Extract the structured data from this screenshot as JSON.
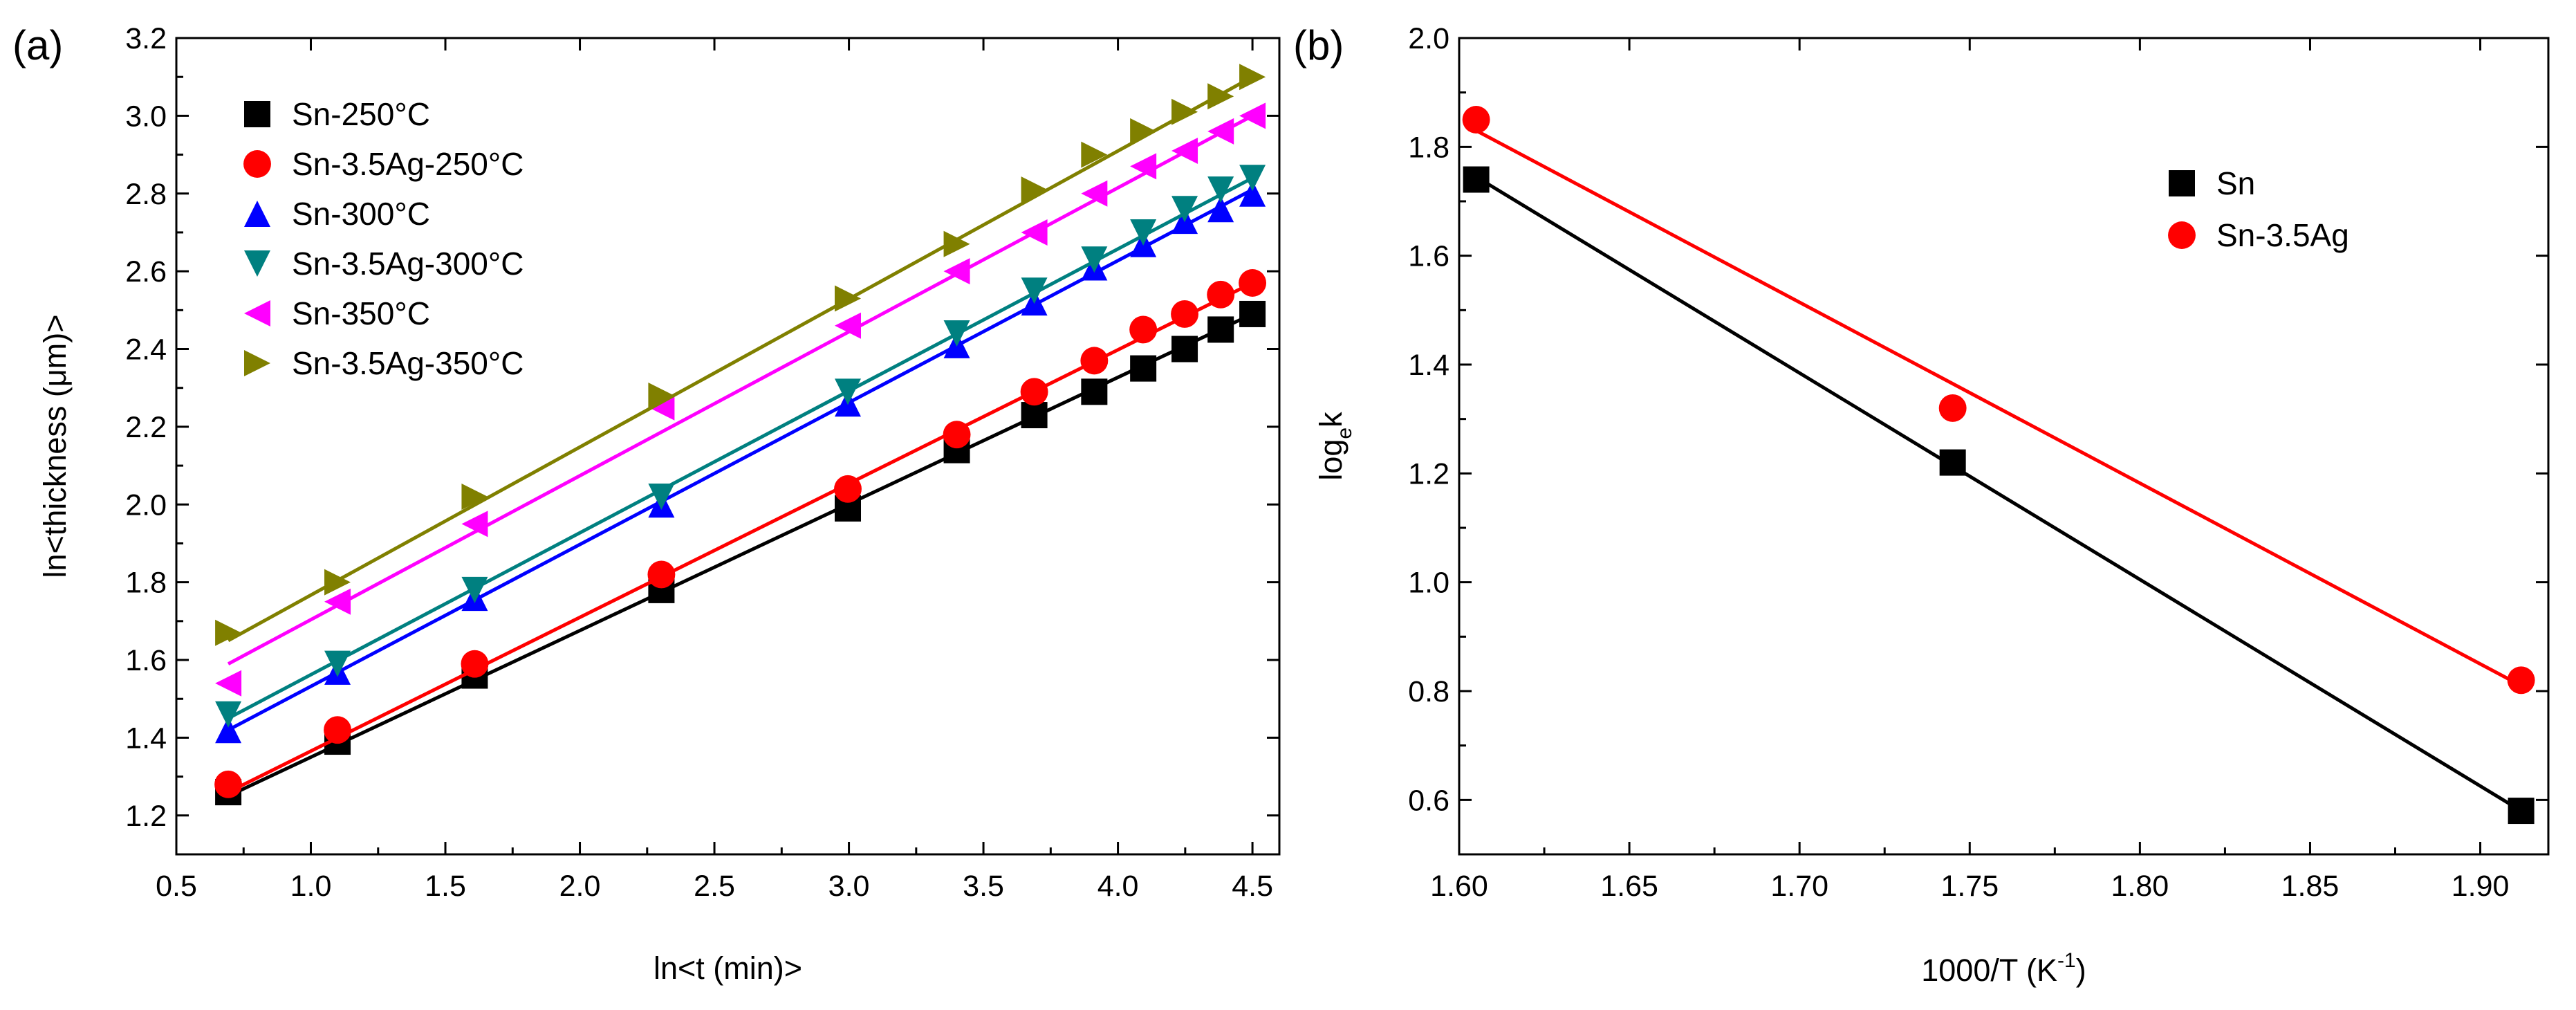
{
  "chart_data": [
    {
      "panel": "(a)",
      "type": "scatter",
      "title": "",
      "xlabel": "ln<t (min)>",
      "ylabel": "ln<thickness (μm)>",
      "xlim": [
        0.5,
        4.6
      ],
      "ylim": [
        1.1,
        3.2
      ],
      "xticks": [
        "0.5",
        "1.0",
        "1.5",
        "2.0",
        "2.5",
        "3.0",
        "3.5",
        "4.0",
        "4.5"
      ],
      "yticks": [
        "1.2",
        "1.4",
        "1.6",
        "1.8",
        "2.0",
        "2.2",
        "2.4",
        "2.6",
        "2.8",
        "3.0",
        "3.2"
      ],
      "x": [
        0.693,
        1.099,
        1.609,
        2.303,
        2.996,
        3.401,
        3.689,
        3.912,
        4.094,
        4.248,
        4.382,
        4.5
      ],
      "legend_position": "top-left",
      "series": [
        {
          "name": "Sn-250°C",
          "marker": "square",
          "color": "#000000",
          "values": [
            1.26,
            1.39,
            1.56,
            1.78,
            1.99,
            2.14,
            2.23,
            2.29,
            2.35,
            2.4,
            2.45,
            2.49
          ],
          "fit": [
            1.25,
            2.49
          ]
        },
        {
          "name": "Sn-3.5Ag-250°C",
          "marker": "circle",
          "color": "#ff0000",
          "values": [
            1.28,
            1.42,
            1.59,
            1.82,
            2.04,
            2.18,
            2.29,
            2.37,
            2.45,
            2.49,
            2.54,
            2.57
          ],
          "fit": [
            1.26,
            2.57
          ]
        },
        {
          "name": "Sn-300°C",
          "marker": "triangle-up",
          "color": "#0000ff",
          "values": [
            1.42,
            1.57,
            1.76,
            2.0,
            2.26,
            2.41,
            2.52,
            2.61,
            2.67,
            2.73,
            2.76,
            2.8
          ],
          "fit": [
            1.42,
            2.81
          ]
        },
        {
          "name": "Sn-3.5Ag-300°C",
          "marker": "triangle-down",
          "color": "#008080",
          "values": [
            1.46,
            1.59,
            1.78,
            2.02,
            2.29,
            2.44,
            2.55,
            2.63,
            2.7,
            2.76,
            2.81,
            2.84
          ],
          "fit": [
            1.45,
            2.84
          ]
        },
        {
          "name": "Sn-350°C",
          "marker": "triangle-left",
          "color": "#ff00ff",
          "values": [
            1.54,
            1.75,
            1.95,
            2.25,
            2.46,
            2.6,
            2.7,
            2.8,
            2.87,
            2.91,
            2.96,
            3.0
          ],
          "fit": [
            1.59,
            3.0
          ]
        },
        {
          "name": "Sn-3.5Ag-350°C",
          "marker": "triangle-right",
          "color": "#808000",
          "values": [
            1.67,
            1.8,
            2.02,
            2.28,
            2.53,
            2.67,
            2.81,
            2.9,
            2.96,
            3.01,
            3.05,
            3.1
          ],
          "fit": [
            1.65,
            3.1
          ]
        }
      ]
    },
    {
      "panel": "(b)",
      "type": "scatter",
      "title": "",
      "xlabel": "1000/T (K",
      "xlabel_sup": "-1",
      "xlabel_end": ")",
      "ylabel_main": "log",
      "ylabel_sub": "e",
      "ylabel_end": "k",
      "xlim": [
        1.6,
        1.92
      ],
      "ylim": [
        0.5,
        2.0
      ],
      "xticks": [
        "1.60",
        "1.65",
        "1.70",
        "1.75",
        "1.80",
        "1.85",
        "1.90"
      ],
      "yticks": [
        "0.6",
        "0.8",
        "1.0",
        "1.2",
        "1.4",
        "1.6",
        "1.8",
        "2.0"
      ],
      "x": [
        1.605,
        1.745,
        1.912
      ],
      "legend_position": "top-right",
      "series": [
        {
          "name": "Sn",
          "marker": "square",
          "color": "#000000",
          "values": [
            1.74,
            1.22,
            0.58
          ],
          "fit": [
            1.745,
            0.58
          ]
        },
        {
          "name": "Sn-3.5Ag",
          "marker": "circle",
          "color": "#ff0000",
          "values": [
            1.85,
            1.32,
            0.82
          ],
          "fit": [
            1.83,
            0.81
          ]
        }
      ]
    }
  ]
}
